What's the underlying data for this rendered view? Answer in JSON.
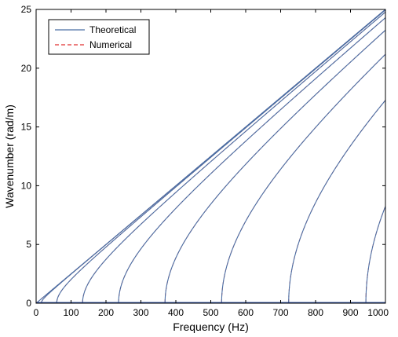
{
  "chart_data": {
    "type": "line",
    "title": "",
    "xlabel": "Frequency (Hz)",
    "ylabel": "Wavenumber (rad/m)",
    "xlim": [
      0,
      1000
    ],
    "ylim": [
      0,
      25
    ],
    "xticks": [
      0,
      100,
      200,
      300,
      400,
      500,
      600,
      700,
      800,
      900,
      1000
    ],
    "yticks": [
      0,
      5,
      10,
      15,
      20,
      25
    ],
    "grid": false,
    "legend_position": "top-left",
    "legend": [
      {
        "name": "Theoretical",
        "color": "#4a6fa5",
        "style": "solid"
      },
      {
        "name": "Numerical",
        "color": "#e03030",
        "style": "dashed"
      }
    ],
    "mode_cutoffs_hz": [
      0,
      15,
      59,
      133,
      236,
      369,
      531,
      723,
      944
    ],
    "asymptote_slope_rad_per_m_per_hz": 0.025
  }
}
